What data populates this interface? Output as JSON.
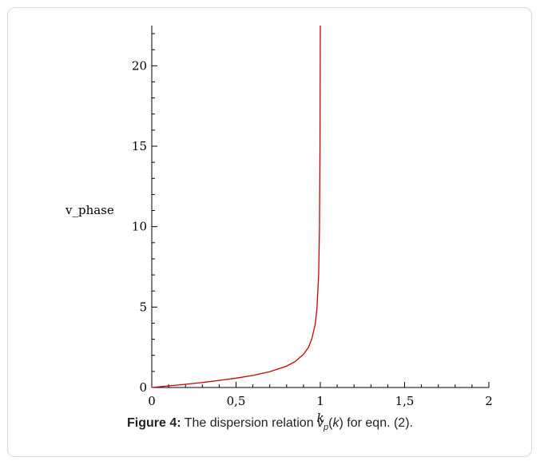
{
  "chart_data": {
    "type": "line",
    "xlabel": "k",
    "ylabel": "v_phase",
    "xlim": [
      0,
      2
    ],
    "ylim": [
      0,
      22.5
    ],
    "x_ticks": [
      0,
      0.5,
      1,
      1.5,
      2
    ],
    "x_tick_labels": [
      "0",
      "0,5",
      "1",
      "1,5",
      "2"
    ],
    "y_ticks": [
      0,
      5,
      10,
      15,
      20
    ],
    "y_tick_labels": [
      "0",
      "5",
      "10",
      "15",
      "20"
    ],
    "grid": false,
    "series": [
      {
        "color": "#cc0000",
        "x": [
          0,
          0.1,
          0.2,
          0.3,
          0.4,
          0.5,
          0.6,
          0.7,
          0.8,
          0.85,
          0.9,
          0.93,
          0.95,
          0.97,
          0.98,
          0.99,
          0.995,
          0.998,
          1.0
        ],
        "y": [
          0,
          0.1,
          0.2,
          0.31,
          0.44,
          0.58,
          0.75,
          0.98,
          1.33,
          1.61,
          2.06,
          2.5,
          3.04,
          3.95,
          4.9,
          7.0,
          9.95,
          15.0,
          22.5
        ]
      }
    ]
  },
  "caption": {
    "label": "Figure 4:",
    "text_before": " The dispersion relation ",
    "symbol": "v",
    "subscript": "p",
    "paren_open": "(",
    "arg": "k",
    "text_after": ") for eqn. (2)."
  }
}
